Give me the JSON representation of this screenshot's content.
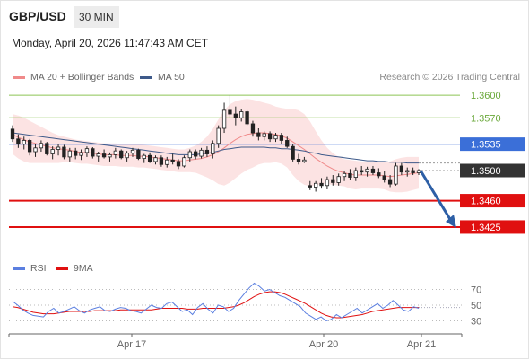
{
  "header": {
    "pair": "GBP/USD",
    "timeframe": "30 MIN"
  },
  "timestamp": "Monday, April 20, 2026 11:47:43 AM CET",
  "legend": [
    {
      "label": "MA 20 + Bollinger Bands",
      "color": "#f08a8a"
    },
    {
      "label": "MA 50",
      "color": "#3e5a8a"
    }
  ],
  "credit": "Research © 2026 Trading Central",
  "colors": {
    "green": "#8cc455",
    "blue": "#3b6fd8",
    "red": "#e01010",
    "dark": "#333333",
    "arrow": "#2d5fa6"
  },
  "chart_data": {
    "type": "candlestick",
    "ylim": [
      1.3388,
      1.3612
    ],
    "levels": [
      {
        "label": "1.3600",
        "value": 1.36,
        "kind": "green-line"
      },
      {
        "label": "1.3570",
        "value": 1.357,
        "kind": "green-line"
      },
      {
        "label": "1.3535",
        "value": 1.3535,
        "kind": "blue-box"
      },
      {
        "label": "1.3500",
        "value": 1.35,
        "kind": "dark-box"
      },
      {
        "label": "1.3460",
        "value": 1.346,
        "kind": "red-box"
      },
      {
        "label": "1.3425",
        "value": 1.3425,
        "kind": "red-box"
      }
    ],
    "x_labels": [
      "Apr 17",
      "Apr 20",
      "Apr 21"
    ],
    "candles": [
      [
        1.3555,
        1.356,
        1.3538,
        1.3542
      ],
      [
        1.3542,
        1.3548,
        1.353,
        1.3535
      ],
      [
        1.3535,
        1.3545,
        1.3528,
        1.354
      ],
      [
        1.354,
        1.3542,
        1.352,
        1.3525
      ],
      [
        1.3525,
        1.3535,
        1.3518,
        1.353
      ],
      [
        1.353,
        1.354,
        1.3525,
        1.3536
      ],
      [
        1.3536,
        1.3538,
        1.352,
        1.3522
      ],
      [
        1.3522,
        1.3532,
        1.3515,
        1.3528
      ],
      [
        1.3528,
        1.3535,
        1.352,
        1.3531
      ],
      [
        1.3531,
        1.3534,
        1.3515,
        1.3518
      ],
      [
        1.3518,
        1.353,
        1.3512,
        1.3526
      ],
      [
        1.3526,
        1.353,
        1.3515,
        1.352
      ],
      [
        1.352,
        1.3528,
        1.3514,
        1.3524
      ],
      [
        1.3524,
        1.3532,
        1.3518,
        1.3529
      ],
      [
        1.3529,
        1.3531,
        1.3516,
        1.3519
      ],
      [
        1.3519,
        1.3525,
        1.3512,
        1.3522
      ],
      [
        1.3522,
        1.3528,
        1.3516,
        1.3518
      ],
      [
        1.3518,
        1.3524,
        1.3512,
        1.3521
      ],
      [
        1.3521,
        1.353,
        1.3516,
        1.3526
      ],
      [
        1.3526,
        1.3528,
        1.3515,
        1.3517
      ],
      [
        1.3517,
        1.3526,
        1.3512,
        1.3523
      ],
      [
        1.3523,
        1.353,
        1.3518,
        1.3527
      ],
      [
        1.3527,
        1.3529,
        1.3514,
        1.3516
      ],
      [
        1.3516,
        1.3522,
        1.351,
        1.352
      ],
      [
        1.352,
        1.3524,
        1.351,
        1.3512
      ],
      [
        1.3512,
        1.352,
        1.3508,
        1.3517
      ],
      [
        1.3517,
        1.352,
        1.3505,
        1.3508
      ],
      [
        1.3508,
        1.3518,
        1.3504,
        1.3514
      ],
      [
        1.3514,
        1.3522,
        1.3508,
        1.3512
      ],
      [
        1.3512,
        1.3515,
        1.3502,
        1.3506
      ],
      [
        1.3506,
        1.352,
        1.3504,
        1.3517
      ],
      [
        1.3517,
        1.3528,
        1.3512,
        1.3525
      ],
      [
        1.3525,
        1.3528,
        1.3515,
        1.3519
      ],
      [
        1.3519,
        1.353,
        1.3516,
        1.3527
      ],
      [
        1.3527,
        1.3532,
        1.3518,
        1.3522
      ],
      [
        1.3522,
        1.354,
        1.3516,
        1.3536
      ],
      [
        1.3536,
        1.356,
        1.353,
        1.3556
      ],
      [
        1.3556,
        1.359,
        1.355,
        1.358
      ],
      [
        1.358,
        1.36,
        1.357,
        1.3575
      ],
      [
        1.3575,
        1.3585,
        1.356,
        1.357
      ],
      [
        1.357,
        1.3582,
        1.3565,
        1.3578
      ],
      [
        1.3578,
        1.358,
        1.356,
        1.3562
      ],
      [
        1.3562,
        1.3566,
        1.3545,
        1.355
      ],
      [
        1.355,
        1.3556,
        1.354,
        1.3545
      ],
      [
        1.3545,
        1.3552,
        1.354,
        1.3549
      ],
      [
        1.3549,
        1.3552,
        1.3538,
        1.3542
      ],
      [
        1.3542,
        1.355,
        1.3538,
        1.3547
      ],
      [
        1.3547,
        1.355,
        1.3535,
        1.354
      ],
      [
        1.354,
        1.3545,
        1.353,
        1.3532
      ],
      [
        1.3532,
        1.3535,
        1.3512,
        1.3515
      ],
      [
        1.3515,
        1.3522,
        1.3508,
        1.3512
      ],
      [
        1.3512,
        1.3518,
        1.351,
        1.3514
      ],
      [
        1.348,
        1.3486,
        1.3474,
        1.3478
      ],
      [
        1.3478,
        1.3486,
        1.3472,
        1.3483
      ],
      [
        1.3483,
        1.349,
        1.3476,
        1.348
      ],
      [
        1.348,
        1.3492,
        1.3475,
        1.3488
      ],
      [
        1.3488,
        1.3494,
        1.348,
        1.3484
      ],
      [
        1.3484,
        1.3496,
        1.348,
        1.3492
      ],
      [
        1.3492,
        1.35,
        1.3486,
        1.3496
      ],
      [
        1.3496,
        1.3502,
        1.3488,
        1.3491
      ],
      [
        1.3491,
        1.3504,
        1.3486,
        1.35
      ],
      [
        1.35,
        1.3506,
        1.3494,
        1.3498
      ],
      [
        1.3498,
        1.3505,
        1.3492,
        1.3502
      ],
      [
        1.3502,
        1.3506,
        1.3494,
        1.3497
      ],
      [
        1.3497,
        1.3503,
        1.349,
        1.3493
      ],
      [
        1.3493,
        1.35,
        1.3484,
        1.3488
      ],
      [
        1.3488,
        1.3494,
        1.3478,
        1.3482
      ],
      [
        1.3482,
        1.351,
        1.348,
        1.3506
      ],
      [
        1.3506,
        1.351,
        1.3494,
        1.3498
      ],
      [
        1.3498,
        1.3504,
        1.3492,
        1.35
      ],
      [
        1.35,
        1.3504,
        1.3494,
        1.3497
      ],
      [
        1.3497,
        1.3502,
        1.3494,
        1.35
      ]
    ],
    "ma20": [
      1.3548,
      1.3544,
      1.3541,
      1.3538,
      1.3536,
      1.3534,
      1.3532,
      1.353,
      1.3529,
      1.3528,
      1.3527,
      1.3525,
      1.3524,
      1.3524,
      1.3523,
      1.3522,
      1.3521,
      1.3521,
      1.3521,
      1.352,
      1.352,
      1.352,
      1.3519,
      1.3519,
      1.3518,
      1.3517,
      1.3516,
      1.3515,
      1.3514,
      1.3513,
      1.3513,
      1.3514,
      1.3515,
      1.3516,
      1.3518,
      1.3521,
      1.3525,
      1.353,
      1.3536,
      1.3541,
      1.3545,
      1.3548,
      1.3549,
      1.355,
      1.355,
      1.3549,
      1.3548,
      1.3546,
      1.3543,
      1.3538,
      1.3533,
      1.3528,
      1.3522,
      1.3516,
      1.3511,
      1.3506,
      1.3502,
      1.3499,
      1.3497,
      1.3495,
      1.3494,
      1.3494,
      1.3494,
      1.3494,
      1.3494,
      1.3493,
      1.3492,
      1.3493,
      1.3494,
      1.3495,
      1.3496,
      1.3497
    ],
    "bb_upper": [
      1.3575,
      1.3573,
      1.357,
      1.3566,
      1.3562,
      1.3558,
      1.3554,
      1.355,
      1.3547,
      1.3545,
      1.3543,
      1.3541,
      1.354,
      1.3539,
      1.3538,
      1.3537,
      1.3536,
      1.3536,
      1.3536,
      1.3535,
      1.3535,
      1.3535,
      1.3535,
      1.3534,
      1.3533,
      1.3532,
      1.3531,
      1.353,
      1.3529,
      1.3528,
      1.3528,
      1.353,
      1.3533,
      1.3538,
      1.3545,
      1.3555,
      1.3568,
      1.358,
      1.3588,
      1.3592,
      1.3594,
      1.3595,
      1.3594,
      1.3592,
      1.359,
      1.3588,
      1.3585,
      1.3583,
      1.3582,
      1.3582,
      1.358,
      1.3575,
      1.3565,
      1.3552,
      1.354,
      1.353,
      1.3523,
      1.3518,
      1.3515,
      1.3514,
      1.3513,
      1.3512,
      1.3512,
      1.3512,
      1.3512,
      1.3511,
      1.3512,
      1.3515,
      1.3517,
      1.3518,
      1.3518,
      1.3518
    ],
    "bb_lower": [
      1.3522,
      1.3516,
      1.3512,
      1.351,
      1.351,
      1.351,
      1.351,
      1.351,
      1.351,
      1.3511,
      1.3511,
      1.351,
      1.3509,
      1.3509,
      1.3508,
      1.3507,
      1.3506,
      1.3506,
      1.3506,
      1.3505,
      1.3505,
      1.3505,
      1.3504,
      1.3504,
      1.3503,
      1.3502,
      1.3501,
      1.35,
      1.3499,
      1.3498,
      1.3498,
      1.3498,
      1.3497,
      1.3494,
      1.3491,
      1.3487,
      1.3482,
      1.348,
      1.3484,
      1.349,
      1.3496,
      1.3501,
      1.3504,
      1.3508,
      1.351,
      1.351,
      1.3511,
      1.3509,
      1.3504,
      1.3494,
      1.3486,
      1.3481,
      1.3479,
      1.348,
      1.3482,
      1.3482,
      1.3481,
      1.348,
      1.3479,
      1.3476,
      1.3475,
      1.3476,
      1.3476,
      1.3476,
      1.3476,
      1.3475,
      1.3472,
      1.3471,
      1.3471,
      1.3472,
      1.3474,
      1.3476
    ],
    "ma50": [
      1.355,
      1.3549,
      1.3548,
      1.3547,
      1.3546,
      1.3545,
      1.3544,
      1.3543,
      1.3542,
      1.3541,
      1.354,
      1.3539,
      1.3538,
      1.3537,
      1.3536,
      1.3535,
      1.3534,
      1.3533,
      1.3532,
      1.3531,
      1.353,
      1.3529,
      1.3528,
      1.3527,
      1.3526,
      1.3525,
      1.3524,
      1.3523,
      1.3522,
      1.3521,
      1.3521,
      1.3521,
      1.3521,
      1.3522,
      1.3523,
      1.3524,
      1.3526,
      1.3528,
      1.3529,
      1.353,
      1.3531,
      1.3531,
      1.3531,
      1.3531,
      1.3531,
      1.353,
      1.353,
      1.3529,
      1.3529,
      1.3528,
      1.3527,
      1.3526,
      1.3524,
      1.3523,
      1.3521,
      1.352,
      1.3519,
      1.3518,
      1.3517,
      1.3516,
      1.3515,
      1.3514,
      1.3513,
      1.3513,
      1.3512,
      1.3512,
      1.3511,
      1.3511,
      1.3511,
      1.351,
      1.351,
      1.351
    ],
    "projection": {
      "from": 1.35,
      "to": 1.3425
    },
    "rsi": {
      "legend": [
        {
          "label": "RSI",
          "color": "#5b7fe0"
        },
        {
          "label": "9MA",
          "color": "#e01010"
        }
      ],
      "ylim": [
        18,
        82
      ],
      "ticks": [
        "70",
        "50",
        "30"
      ],
      "tick_values": [
        70,
        50,
        30
      ],
      "rsi": [
        55,
        50,
        44,
        40,
        37,
        36,
        35,
        42,
        46,
        40,
        42,
        45,
        48,
        43,
        40,
        44,
        46,
        48,
        43,
        42,
        45,
        47,
        46,
        43,
        42,
        40,
        45,
        50,
        47,
        46,
        52,
        54,
        48,
        42,
        44,
        38,
        47,
        52,
        45,
        40,
        50,
        48,
        42,
        46,
        56,
        64,
        72,
        78,
        74,
        68,
        70,
        66,
        62,
        60,
        56,
        52,
        48,
        40,
        36,
        32,
        35,
        30,
        32,
        38,
        34,
        38,
        42,
        46,
        40,
        44,
        48,
        52,
        46,
        50,
        56,
        50,
        44,
        42,
        48,
        46
      ],
      "ma9": [
        48,
        47,
        45,
        43,
        41,
        40,
        39,
        39,
        39,
        40,
        41,
        42,
        42,
        42,
        42,
        42,
        43,
        43,
        43,
        43,
        43,
        44,
        44,
        44,
        44,
        44,
        44,
        44,
        45,
        46,
        46,
        46,
        46,
        46,
        45,
        45,
        45,
        46,
        46,
        46,
        46,
        46,
        47,
        48,
        50,
        53,
        57,
        61,
        64,
        66,
        67,
        67,
        66,
        64,
        61,
        58,
        55,
        52,
        48,
        44,
        40,
        37,
        35,
        34,
        34,
        35,
        36,
        37,
        38,
        40,
        42,
        43,
        44,
        45,
        46,
        47,
        47,
        47,
        47,
        47
      ]
    }
  }
}
